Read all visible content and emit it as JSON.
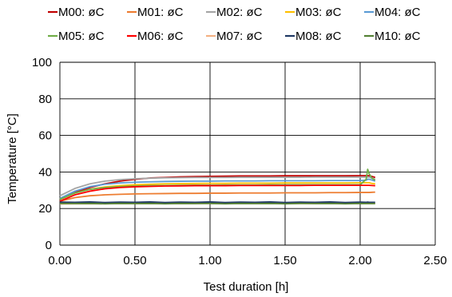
{
  "chart_data": {
    "type": "line",
    "title": "",
    "xlabel": "Test duration [h]",
    "ylabel": "Temperature [°C]",
    "xlim": [
      0,
      2.5
    ],
    "ylim": [
      0,
      100
    ],
    "x_ticks": [
      "0.00",
      "0.50",
      "1.00",
      "1.50",
      "2.00",
      "2.50"
    ],
    "y_ticks": [
      "0",
      "20",
      "40",
      "60",
      "80",
      "100"
    ],
    "grid": true,
    "legend_position": "top",
    "x": [
      0,
      0.1,
      0.2,
      0.3,
      0.4,
      0.5,
      0.6,
      0.7,
      0.8,
      0.9,
      1.0,
      1.1,
      1.2,
      1.3,
      1.4,
      1.5,
      1.6,
      1.7,
      1.8,
      1.9,
      2.0,
      2.04,
      2.05,
      2.06,
      2.08,
      2.1
    ],
    "series": [
      {
        "name": "M00: øC",
        "color": "#c00000",
        "values": [
          25,
          29,
          31.5,
          33.5,
          35,
          36,
          36.7,
          37,
          37.3,
          37.5,
          37.6,
          37.7,
          37.8,
          37.8,
          37.8,
          37.9,
          37.9,
          37.9,
          37.9,
          37.9,
          38,
          38,
          38,
          38,
          37.5,
          37
        ]
      },
      {
        "name": "M01: øC",
        "color": "#ed7d31",
        "values": [
          24,
          26,
          27,
          27.5,
          27.8,
          28,
          28.1,
          28.2,
          28.3,
          28.3,
          28.4,
          28.4,
          28.5,
          28.5,
          28.5,
          28.6,
          28.6,
          28.6,
          28.7,
          28.7,
          28.8,
          28.8,
          28.8,
          28.8,
          28.9,
          29
        ]
      },
      {
        "name": "M02: øC",
        "color": "#a5a5a5",
        "values": [
          27,
          31,
          33.5,
          35,
          35.8,
          36.3,
          36.6,
          36.8,
          36.9,
          37,
          37,
          37,
          37.1,
          37.1,
          37.1,
          37.1,
          37.1,
          37.2,
          37.2,
          37.2,
          37.2,
          37.2,
          37.2,
          37.2,
          36.5,
          36
        ]
      },
      {
        "name": "M03: øC",
        "color": "#ffc000",
        "values": [
          25,
          28.5,
          30.5,
          31.8,
          32.5,
          33,
          33.3,
          33.5,
          33.6,
          33.7,
          33.8,
          33.8,
          33.9,
          33.9,
          33.9,
          34,
          34,
          34,
          34,
          34,
          34.1,
          34.1,
          34.1,
          34.1,
          33.7,
          33.5
        ]
      },
      {
        "name": "M04: øC",
        "color": "#5b9bd5",
        "values": [
          25.5,
          29.5,
          32,
          33.3,
          34,
          34.4,
          34.6,
          34.8,
          34.9,
          35,
          35,
          35.1,
          35.1,
          35.1,
          35.2,
          35.2,
          35.2,
          35.2,
          35.3,
          35.3,
          35.3,
          35.5,
          36,
          36,
          35.5,
          35
        ]
      },
      {
        "name": "M05: øC",
        "color": "#70ad47",
        "values": [
          25,
          28.5,
          30.5,
          31.5,
          32,
          32.3,
          32.5,
          32.6,
          32.7,
          32.8,
          32.8,
          32.9,
          32.9,
          32.9,
          33,
          33,
          33,
          33,
          33,
          33,
          33,
          36,
          41.5,
          39,
          36.5,
          35.5
        ]
      },
      {
        "name": "M06: øC",
        "color": "#ff0000",
        "values": [
          24,
          27.5,
          29.5,
          30.8,
          31.5,
          31.9,
          32.1,
          32.3,
          32.4,
          32.5,
          32.5,
          32.5,
          32.6,
          32.6,
          32.6,
          32.6,
          32.6,
          32.7,
          32.7,
          32.7,
          32.7,
          32.7,
          32.7,
          32.7,
          32.6,
          32.5
        ]
      },
      {
        "name": "M07: øC",
        "color": "#f4b183",
        "values": [
          22.5,
          22.6,
          22.6,
          22.6,
          22.7,
          22.7,
          22.7,
          22.7,
          22.7,
          22.8,
          22.8,
          22.8,
          22.8,
          22.8,
          22.8,
          22.8,
          22.8,
          22.8,
          22.8,
          22.8,
          22.8,
          22.8,
          22.8,
          22.8,
          22.8,
          22.8
        ]
      },
      {
        "name": "M08: øC",
        "color": "#1f3864",
        "values": [
          23.5,
          23.4,
          23.6,
          23.3,
          23.5,
          23.4,
          23.6,
          23.3,
          23.5,
          23.4,
          23.6,
          23.3,
          23.5,
          23.4,
          23.6,
          23.3,
          23.5,
          23.4,
          23.6,
          23.3,
          23.5,
          23.4,
          23.5,
          23.4,
          23.4,
          23.4
        ]
      },
      {
        "name": "M10: øC",
        "color": "#548235",
        "values": [
          22.8,
          22.7,
          22.8,
          22.6,
          22.8,
          22.7,
          22.8,
          22.6,
          22.8,
          22.7,
          22.8,
          22.6,
          22.8,
          22.7,
          22.8,
          22.6,
          22.8,
          22.7,
          22.8,
          22.6,
          22.8,
          22.7,
          22.7,
          22.7,
          22.7,
          22.7
        ]
      }
    ]
  }
}
